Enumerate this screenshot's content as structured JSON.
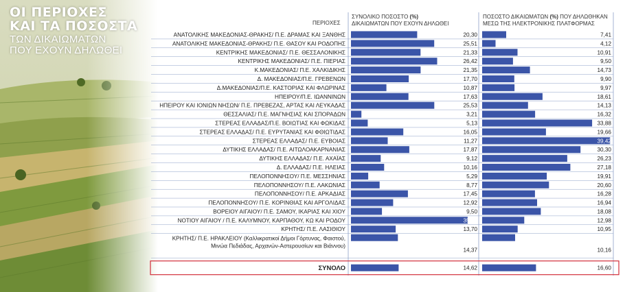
{
  "headline": {
    "line1": "ΟΙ ΠΕΡΙΟΧΕΣ",
    "line2": "ΚΑΙ ΤΑ ΠΟΣΟΣΤΑ",
    "line3": "ΤΩΝ ΔΙΚΑΙΩΜΑΤΩΝ",
    "line4": "ΠΟΥ ΕΧΟΥΝ ΔΗΛΩΘΕΙ"
  },
  "headers": {
    "region": "ΠΕΡΙΟΧΕΣ",
    "col1_line1_a": "ΣΥΝΟΛΙΚΟ ΠΟΣΟΣΤΟ ",
    "col1_line1_b": "(%)",
    "col1_line2": "ΔΙΚΑΙΩΜΑΤΩΝ ΠΟΥ ΕΧΟΥΝ ΔΗΛΩΘΕΙ",
    "col2_line1_a": "ΠΟΣΟΣΤΟ ΔΙΚΑΙΩΜΑΤΩΝ ",
    "col2_line1_b": "(%)",
    "col2_line1_c": " ΠΟΥ ΔΗΛΩΘΗΚΑΝ",
    "col2_line2": "ΜΕΣΩ ΤΗΣ ΗΛΕΚΤΡΟΝΙΚΗΣ ΠΛΑΤΦΟΡΜΑΣ"
  },
  "colors": {
    "bar": "#3b55a8",
    "grid": "#8da0c8",
    "total_border": "#d22d3a",
    "text": "#222222"
  },
  "chart_data": {
    "type": "bar",
    "title": "ΟΙ ΠΕΡΙΟΧΕΣ ΚΑΙ ΤΑ ΠΟΣΟΣΤΑ ΤΩΝ ΔΙΚΑΙΩΜΑΤΩΝ ΠΟΥ ΕΧΟΥΝ ΔΗΛΩΘΕΙ",
    "series": [
      {
        "name": "ΣΥΝΟΛΙΚΟ ΠΟΣΟΣΤΟ (%) ΔΙΚΑΙΩΜΑΤΩΝ ΠΟΥ ΕΧΟΥΝ ΔΗΛΩΘΕΙ",
        "max": 36
      },
      {
        "name": "ΠΟΣΟΣΤΟ ΔΙΚΑΙΩΜΑΤΩΝ (%) ΠΟΥ ΔΗΛΩΘΗΚΑΝ ΜΕΣΩ ΤΗΣ ΗΛΕΚΤΡΟΝΙΚΗΣ ΠΛΑΤΦΟΡΜΑΣ",
        "max": 40
      }
    ],
    "rows": [
      {
        "region": "ΑΝΑΤΟΛΙΚΗΣ ΜΑΚΕΔΟΝΙΑΣ-ΘΡΑΚΗΣ/ Π.Ε. ΔΡΑΜΑΣ ΚΑΙ ΞΑΝΘΗΣ",
        "v1": 20.3,
        "l1": "20,30",
        "v2": 7.41,
        "l2": "7,41"
      },
      {
        "region": "ΑΝΑΤΟΛΙΚΗΣ ΜΑΚΕΔΟΝΙΑΣ-ΘΡΑΚΗΣ/ Π.Ε. ΘΑΣΟΥ ΚΑΙ ΡΟΔΟΠΗΣ",
        "v1": 25.51,
        "l1": "25,51",
        "v2": 4.12,
        "l2": "4,12"
      },
      {
        "region": "ΚΕΝΤΡΙΚΗΣ ΜΑΚΕΔΟΝΙΑΣ/ Π.Ε. ΘΕΣΣΑΛΟΝΙΚΗΣ",
        "v1": 21.33,
        "l1": "21,33",
        "v2": 10.91,
        "l2": "10,91"
      },
      {
        "region": "ΚΕΝΤΡΙΚΗΣ ΜΑΚΕΔΟΝΙΑΣ/ Π.Ε. ΠΙΕΡΙΑΣ",
        "v1": 26.42,
        "l1": "26,42",
        "v2": 9.5,
        "l2": "9,50"
      },
      {
        "region": "Κ.ΜΑΚΕΔΟΝΙΑΣ/ Π.Ε. ΧΑΛΚΙΔΙΚΗΣ",
        "v1": 21.35,
        "l1": "21,35",
        "v2": 14.73,
        "l2": "14,73"
      },
      {
        "region": "Δ. ΜΑΚΕΔΟΝΙΑΣ/Π.Ε. ΓΡΕΒΕΝΩΝ",
        "v1": 17.7,
        "l1": "17,70",
        "v2": 9.9,
        "l2": "9,90"
      },
      {
        "region": "Δ.ΜΑΚΕΔΟΝΙΑΣ/Π.Ε. ΚΑΣΤΟΡΙΑΣ ΚΑΙ ΦΛΩΡΙΝΑΣ",
        "v1": 10.87,
        "l1": "10,87",
        "v2": 9.97,
        "l2": "9,97"
      },
      {
        "region": "ΗΠΕΙΡΟΥ/Π.Ε. ΙΩΑΝΝΙΝΩΝ",
        "v1": 17.63,
        "l1": "17,63",
        "v2": 18.61,
        "l2": "18,61"
      },
      {
        "region": "ΗΠΕΙΡΟΥ ΚΑΙ ΙΟΝΙΩΝ ΝΗΣΩΝ/ Π.Ε. ΠΡΕΒΕΖΑΣ, ΑΡΤΑΣ ΚΑΙ ΛΕΥΚΑΔΑΣ",
        "v1": 25.53,
        "l1": "25,53",
        "v2": 14.13,
        "l2": "14,13"
      },
      {
        "region": "ΘΕΣΣΑΛΙΑΣ/ Π.Ε. ΜΑΓΝΗΣΙΑΣ ΚΑΙ ΣΠΟΡΑΔΩΝ",
        "v1": 3.21,
        "l1": "3,21",
        "v2": 16.32,
        "l2": "16,32"
      },
      {
        "region": "ΣΤΕΡΕΑΣ ΕΛΛΑΔΑΣ/Π.Ε. ΒΟΙΩΤΙΑΣ ΚΑΙ ΦΩΚΙΔΑΣ",
        "v1": 5.13,
        "l1": "5,13",
        "v2": 33.88,
        "l2": "33,88"
      },
      {
        "region": "ΣΤΕΡΕΑΣ ΕΛΛΑΔΑΣ/ Π.Ε. ΕΥΡΥΤΑΝΙΑΣ ΚΑΙ ΦΘΙΩΤΙΔΑΣ",
        "v1": 16.05,
        "l1": "16,05",
        "v2": 19.66,
        "l2": "19,66"
      },
      {
        "region": "ΣΤΕΡΕΑΣ ΕΛΛΑΔΑΣ/ Π.Ε. ΕΥΒΟΙΑΣ",
        "v1": 11.27,
        "l1": "11,27",
        "v2": 39.42,
        "l2": "39,42"
      },
      {
        "region": "ΔΥΤΙΚΗΣ ΕΛΛΑΔΑΣ/ Π.Ε. ΑΙΤΩΛΟΑΚΑΡΝΑΝΙΑΣ",
        "v1": 17.87,
        "l1": "17,87",
        "v2": 30.3,
        "l2": "30,30"
      },
      {
        "region": "ΔΥΤΙΚΗΣ ΕΛΛΑΔΑΣ/ Π.Ε. ΑΧΑΪΑΣ",
        "v1": 9.12,
        "l1": "9,12",
        "v2": 26.23,
        "l2": "26,23"
      },
      {
        "region": "Δ. ΕΛΛΑΔΑΣ/ Π.Ε. ΗΛΕΙΑΣ",
        "v1": 10.16,
        "l1": "10,16",
        "v2": 27.18,
        "l2": "27,18"
      },
      {
        "region": "ΠΕΛΟΠΟΝΝΗΣΟΥ/ Π.Ε. ΜΕΣΣΗΝΙΑΣ",
        "v1": 5.29,
        "l1": "5,29",
        "v2": 19.91,
        "l2": "19,91"
      },
      {
        "region": "ΠΕΛΟΠΟΝΝΗΣΟΥ/ Π.Ε. ΛΑΚΩΝΙΑΣ",
        "v1": 8.77,
        "l1": "8,77",
        "v2": 20.6,
        "l2": "20,60"
      },
      {
        "region": "ΠΕΛΟΠΟΝΝΗΣΟΥ/ Π.Ε. ΑΡΚΑΔΙΑΣ",
        "v1": 17.45,
        "l1": "17,45",
        "v2": 16.28,
        "l2": "16,28"
      },
      {
        "region": "ΠΕΛΟΠΟΝΝΗΣΟΥ/ Π.Ε. ΚΟΡΙΝΘΙΑΣ ΚΑΙ ΑΡΓΟΛΙΔΑΣ",
        "v1": 12.92,
        "l1": "12,92",
        "v2": 16.94,
        "l2": "16,94"
      },
      {
        "region": "ΒΟΡΕΙΟΥ ΑΙΓΑΙΟΥ/ Π.Ε. ΣΑΜΟΥ, ΙΚΑΡΙΑΣ ΚΑΙ ΧΙΟΥ",
        "v1": 9.5,
        "l1": "9,50",
        "v2": 18.08,
        "l2": "18,08"
      },
      {
        "region": "ΝΟΤΙΟΥ ΑΙΓΑΙΟΥ / Π.Ε. ΚΑΛΥΜΝΟΥ, ΚΑΡΠΑΘΟΥ, ΚΩ ΚΑΙ ΡΟΔΟΥ",
        "v1": 35.76,
        "l1": "35,76",
        "v2": 12.98,
        "l2": "12,98"
      },
      {
        "region": "ΚΡΗΤΗΣ/ Π.Ε. ΛΑΣΙΘΙΟΥ",
        "v1": 13.7,
        "l1": "13,70",
        "v2": 10.95,
        "l2": "10,95"
      },
      {
        "region": "ΚΡΗΤΗΣ/ Π.Ε. ΗΡΑΚΛΕΙΟΥ (Καλλικρατικοί Δήμοι Γόρτυνας, Φαιστού,",
        "region2": "Μινώα Πεδιάδας, Αρχανών-Αστερουσίων και Βιάννου)",
        "v1": 14.37,
        "l1": "14,37",
        "v2": 10.16,
        "l2": "10,16"
      }
    ],
    "total": {
      "region": "ΣΥΝΟΛΟ",
      "v1": 14.62,
      "l1": "14,62",
      "v2": 16.6,
      "l2": "16,60"
    }
  }
}
